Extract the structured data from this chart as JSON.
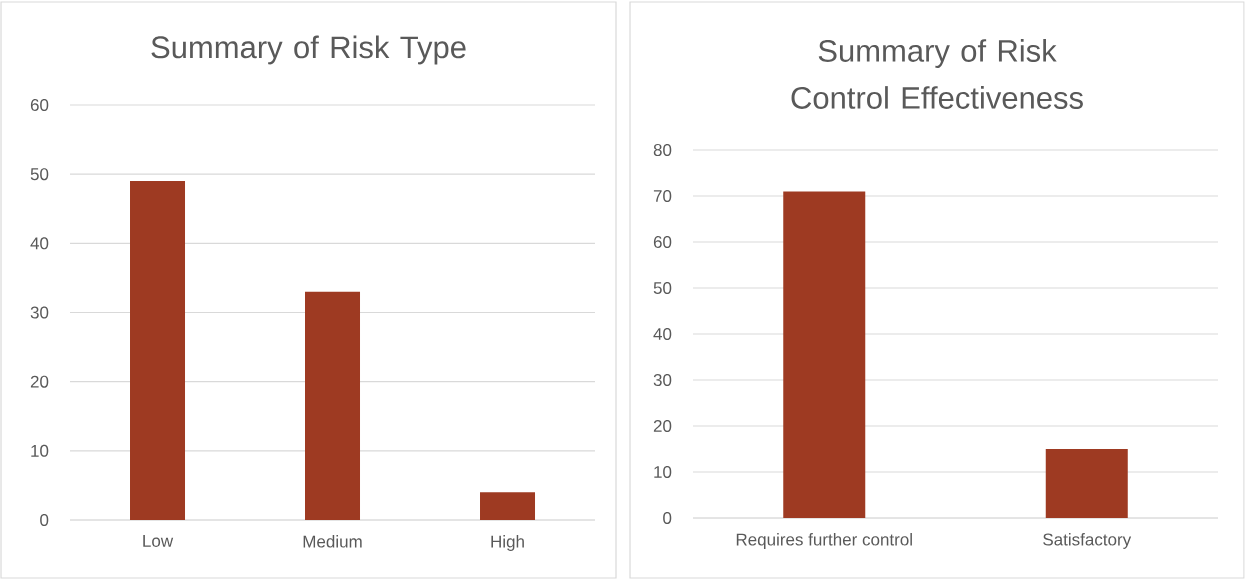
{
  "chart_data": [
    {
      "type": "bar",
      "title": "Summary of Risk Type",
      "categories": [
        "Low",
        "Medium",
        "High"
      ],
      "values": [
        49,
        33,
        4
      ],
      "color": "#9e3a22",
      "ylim": [
        0,
        60
      ],
      "yticks": [
        0,
        10,
        20,
        30,
        40,
        50,
        60
      ],
      "grid": "y"
    },
    {
      "type": "bar",
      "title": "Summary of Risk Control Effectiveness",
      "categories": [
        "Requires further control",
        "Satisfactory"
      ],
      "values": [
        71,
        15
      ],
      "color": "#9e3a22",
      "ylim": [
        0,
        80
      ],
      "yticks": [
        0,
        10,
        20,
        30,
        40,
        50,
        60,
        70,
        80
      ],
      "grid": "y"
    }
  ]
}
